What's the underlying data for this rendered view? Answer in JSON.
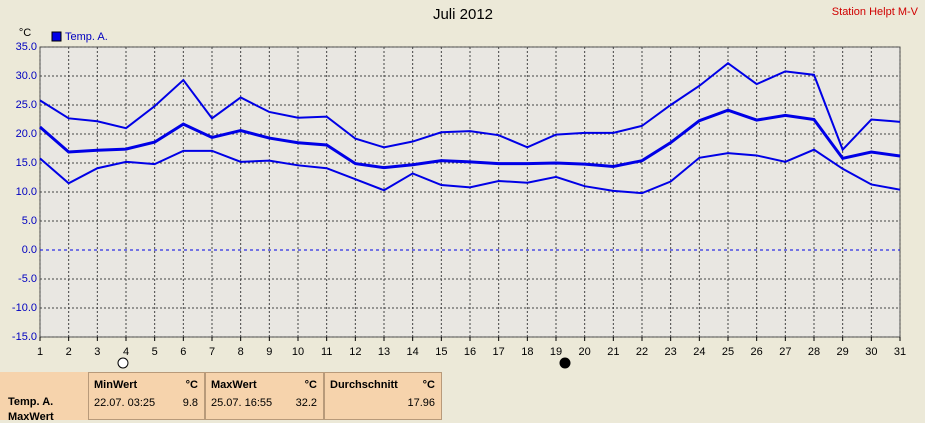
{
  "chart_data": {
    "type": "line",
    "title": "Juli 2012",
    "station": "Station Helpt M-V",
    "y_unit": "°C",
    "x": [
      1,
      2,
      3,
      4,
      5,
      6,
      7,
      8,
      9,
      10,
      11,
      12,
      13,
      14,
      15,
      16,
      17,
      18,
      19,
      20,
      21,
      22,
      23,
      24,
      25,
      26,
      27,
      28,
      29,
      30,
      31
    ],
    "xlim": [
      1,
      31
    ],
    "series": [
      {
        "name": "Temp. A.",
        "color": "#0000e6",
        "values": [
          21.2,
          16.9,
          17.2,
          17.4,
          18.6,
          21.7,
          19.4,
          20.6,
          19.3,
          18.5,
          18.1,
          14.9,
          14.2,
          14.7,
          15.4,
          15.2,
          14.9,
          14.9,
          15.0,
          14.8,
          14.4,
          15.4,
          18.5,
          22.3,
          24.1,
          22.4,
          23.2,
          22.5,
          15.8,
          16.9,
          16.2
        ],
        "max": [
          25.8,
          22.7,
          22.2,
          21.0,
          24.8,
          29.3,
          22.7,
          26.3,
          23.8,
          22.8,
          23.0,
          19.2,
          17.7,
          18.7,
          20.3,
          20.5,
          19.8,
          17.7,
          19.9,
          20.2,
          20.2,
          21.4,
          25.0,
          28.3,
          32.2,
          28.6,
          30.8,
          30.2,
          17.3,
          22.5,
          22.1
        ],
        "min": [
          15.8,
          11.5,
          14.1,
          15.2,
          14.8,
          17.1,
          17.1,
          15.2,
          15.4,
          14.6,
          14.1,
          12.2,
          10.3,
          13.2,
          11.2,
          10.8,
          11.9,
          11.6,
          12.6,
          11.0,
          10.2,
          9.8,
          11.8,
          15.9,
          16.7,
          16.3,
          15.2,
          17.3,
          14.0,
          11.3,
          10.4
        ]
      }
    ],
    "ylim": [
      -15,
      35
    ],
    "yticks": [
      {
        "value": -15,
        "label": "-15.0"
      },
      {
        "value": -10,
        "label": "-10.0"
      },
      {
        "value": -5,
        "label": "-5.0"
      },
      {
        "value": 0,
        "label": "0.0"
      },
      {
        "value": 5,
        "label": "5.0"
      },
      {
        "value": 10,
        "label": "10.0"
      },
      {
        "value": 15,
        "label": "15.0"
      },
      {
        "value": 20,
        "label": "20.0"
      },
      {
        "value": 25,
        "label": "25.0"
      },
      {
        "value": 30,
        "label": "30.0"
      },
      {
        "value": 35,
        "label": "35.0"
      }
    ],
    "grid": true
  },
  "stats": {
    "row_labels": [
      "Temp. A.",
      "MaxWert"
    ],
    "min": {
      "label": "MinWert",
      "unit": "°C",
      "time": "22.07.  03:25",
      "value": "9.8"
    },
    "max": {
      "label": "MaxWert",
      "unit": "°C",
      "time": "25.07.  16:55",
      "value": "32.2"
    },
    "avg": {
      "label": "Durchschnitt",
      "unit": "°C",
      "value": "17.96"
    }
  }
}
